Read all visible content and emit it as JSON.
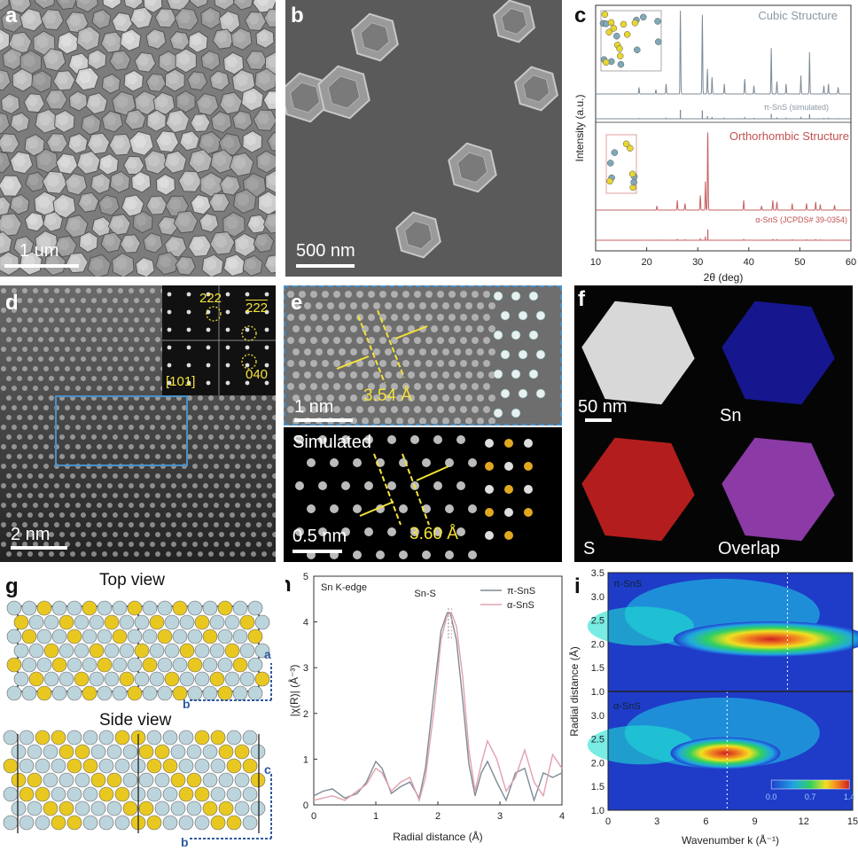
{
  "panels": {
    "a": {
      "label": "a",
      "scale": "1 um"
    },
    "b": {
      "label": "b",
      "scale": "500 nm"
    },
    "c": {
      "label": "c"
    },
    "d": {
      "label": "d",
      "scale": "2 nm",
      "fft": {
        "spot1": "222",
        "spot2": "222",
        "spot3": "040",
        "zone": "[101]"
      }
    },
    "e": {
      "label": "e",
      "scale_top": "1 nm",
      "spacing_top": "3.54 Å",
      "sim_label": "Simulated",
      "scale_bottom": "0.5 nm",
      "spacing_bottom": "3.60 Å"
    },
    "f": {
      "label": "f",
      "scale": "50 nm",
      "sn": "Sn",
      "s": "S",
      "overlap": "Overlap"
    },
    "g": {
      "label": "g",
      "top_view": "Top view",
      "side_view": "Side view",
      "axis_a": "a",
      "axis_b": "b",
      "axis_c": "c",
      "axis_b2": "b"
    },
    "h": {
      "label": "h"
    },
    "i": {
      "label": "i"
    }
  },
  "chart_data": [
    {
      "id": "c",
      "type": "line",
      "xlabel": "2θ (deg)",
      "ylabel": "Intensity (a.u.)",
      "xlim": [
        10,
        60
      ],
      "xticks": [
        10,
        20,
        30,
        40,
        50,
        60
      ],
      "annotations": {
        "cubic": "Cubic Structure",
        "cubic_ref": "π-SnS (simulated)",
        "ortho": "Orthorhombic Structure",
        "ortho_ref": "α-SnS (JCPDS# 39-0354)"
      },
      "series": [
        {
          "peaks": [
            [
              18.5,
              0.08
            ],
            [
              21.8,
              0.05
            ],
            [
              23.8,
              0.12
            ],
            [
              26.6,
              1.0
            ],
            [
              30.9,
              0.95
            ],
            [
              31.9,
              0.3
            ],
            [
              32.8,
              0.2
            ],
            [
              35.2,
              0.12
            ],
            [
              39.2,
              0.18
            ],
            [
              41.0,
              0.1
            ],
            [
              44.4,
              0.55
            ],
            [
              45.5,
              0.15
            ],
            [
              47.3,
              0.12
            ],
            [
              50.2,
              0.22
            ],
            [
              51.9,
              0.5
            ],
            [
              54.7,
              0.1
            ],
            [
              55.6,
              0.12
            ],
            [
              57.5,
              0.08
            ]
          ]
        },
        {
          "peaks": [
            [
              22.0,
              0.05
            ],
            [
              26.0,
              0.12
            ],
            [
              27.5,
              0.08
            ],
            [
              30.5,
              0.18
            ],
            [
              31.5,
              0.35
            ],
            [
              31.97,
              1.0
            ],
            [
              39.0,
              0.12
            ],
            [
              42.5,
              0.05
            ],
            [
              44.7,
              0.12
            ],
            [
              45.5,
              0.1
            ],
            [
              48.5,
              0.08
            ],
            [
              51.3,
              0.08
            ],
            [
              53.1,
              0.1
            ],
            [
              54.0,
              0.07
            ],
            [
              56.8,
              0.06
            ]
          ]
        }
      ]
    },
    {
      "id": "h",
      "type": "line",
      "title": "Sn K-edge",
      "xlabel": "Radial distance (Å)",
      "ylabel": "|χ(R)| (Å⁻³)",
      "xlim": [
        0,
        4
      ],
      "ylim": [
        0,
        5
      ],
      "xticks": [
        0,
        1,
        2,
        3,
        4
      ],
      "yticks": [
        0,
        1,
        2,
        3,
        4,
        5
      ],
      "peak_label": "Sn-S",
      "series": [
        {
          "name": "π-SnS",
          "color": "#7d8b96",
          "x": [
            0.0,
            0.15,
            0.3,
            0.5,
            0.7,
            0.85,
            1.0,
            1.1,
            1.25,
            1.4,
            1.55,
            1.7,
            1.8,
            1.95,
            2.05,
            2.15,
            2.2,
            2.3,
            2.4,
            2.5,
            2.6,
            2.7,
            2.8,
            2.95,
            3.1,
            3.25,
            3.4,
            3.55,
            3.7,
            3.85,
            4.0
          ],
          "y": [
            0.2,
            0.3,
            0.35,
            0.15,
            0.25,
            0.5,
            0.95,
            0.8,
            0.25,
            0.4,
            0.5,
            0.15,
            0.8,
            2.6,
            3.8,
            4.2,
            4.2,
            3.6,
            2.3,
            0.9,
            0.2,
            0.7,
            0.95,
            0.5,
            0.1,
            0.7,
            0.8,
            0.1,
            0.7,
            0.6,
            0.7
          ]
        },
        {
          "name": "α-SnS",
          "color": "#e2a1b0",
          "x": [
            0.0,
            0.15,
            0.3,
            0.5,
            0.7,
            0.85,
            1.0,
            1.1,
            1.25,
            1.4,
            1.55,
            1.7,
            1.8,
            1.95,
            2.05,
            2.15,
            2.22,
            2.3,
            2.4,
            2.5,
            2.6,
            2.7,
            2.8,
            2.95,
            3.1,
            3.25,
            3.4,
            3.55,
            3.7,
            3.85,
            4.0
          ],
          "y": [
            0.1,
            0.15,
            0.2,
            0.1,
            0.3,
            0.45,
            0.8,
            0.7,
            0.3,
            0.5,
            0.6,
            0.1,
            0.6,
            2.2,
            3.6,
            4.15,
            4.2,
            3.9,
            2.8,
            1.2,
            0.3,
            0.9,
            1.4,
            1.0,
            0.3,
            0.6,
            1.2,
            0.5,
            0.2,
            1.1,
            0.8
          ]
        }
      ],
      "legend": "top-right"
    },
    {
      "id": "i",
      "type": "heatmap",
      "xlabel": "Wavenumber k (Å⁻¹)",
      "ylabel": "Radial distance (Å)",
      "xlim": [
        0,
        15
      ],
      "xticks": [
        0,
        3,
        6,
        9,
        12,
        15
      ],
      "top": {
        "label": "π-SnS",
        "ylim": [
          1.0,
          3.5
        ],
        "yticks": [
          1.0,
          1.5,
          2.0,
          2.5,
          3.0,
          3.5
        ],
        "marker_k": 11
      },
      "bottom": {
        "label": "α-SnS",
        "ylim": [
          1.0,
          3.5
        ],
        "yticks": [
          1.0,
          1.5,
          2.0,
          2.5,
          3.0
        ],
        "marker_k": 7.3
      },
      "colorbar": {
        "ticks": [
          "0.0",
          "0.7",
          "1.4"
        ]
      }
    }
  ]
}
